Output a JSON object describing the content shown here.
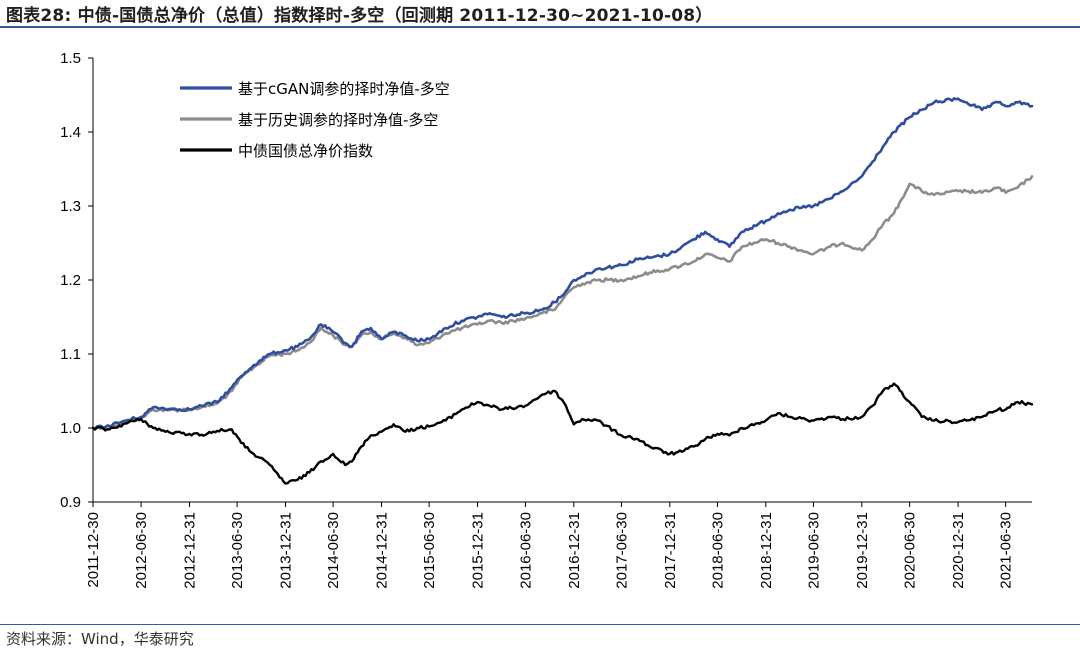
{
  "figure": {
    "title": "图表28:  中债-国债总净价（总值）指数择时-多空（回测期 2011-12-30~2021-10-08）",
    "source": "资料来源：Wind，华泰研究"
  },
  "chart_data": {
    "type": "line",
    "title": "",
    "xlabel": "",
    "ylabel": "",
    "ylim": [
      0.9,
      1.5
    ],
    "yticks": [
      "1.5",
      "1.4",
      "1.3",
      "1.2",
      "1.1",
      "1.0",
      "0.9"
    ],
    "ytick_values": [
      1.5,
      1.4,
      1.3,
      1.2,
      1.1,
      1.0,
      0.9
    ],
    "xticks": [
      "2011-12-30",
      "2012-06-30",
      "2012-12-31",
      "2013-06-30",
      "2013-12-31",
      "2014-06-30",
      "2014-12-31",
      "2015-06-30",
      "2015-12-31",
      "2016-06-30",
      "2016-12-31",
      "2017-06-30",
      "2017-12-31",
      "2018-06-30",
      "2018-12-31",
      "2019-06-30",
      "2019-12-31",
      "2020-06-30",
      "2020-12-31",
      "2021-06-30"
    ],
    "xrange": [
      "2011-12-30",
      "2021-10-08"
    ],
    "legend_position": "top-left",
    "grid": false,
    "series": [
      {
        "name": "基于cGAN调参的择时净值-多空",
        "color": "#2e4f9e",
        "points": [
          [
            "2011-12-30",
            1.0
          ],
          [
            "2012-03-01",
            1.003
          ],
          [
            "2012-05-01",
            1.01
          ],
          [
            "2012-06-30",
            1.015
          ],
          [
            "2012-08-15",
            1.028
          ],
          [
            "2012-10-15",
            1.026
          ],
          [
            "2012-12-31",
            1.025
          ],
          [
            "2013-02-15",
            1.03
          ],
          [
            "2013-04-15",
            1.035
          ],
          [
            "2013-06-10",
            1.055
          ],
          [
            "2013-07-15",
            1.07
          ],
          [
            "2013-09-01",
            1.085
          ],
          [
            "2013-11-01",
            1.1
          ],
          [
            "2013-12-31",
            1.105
          ],
          [
            "2014-02-15",
            1.11
          ],
          [
            "2014-04-01",
            1.12
          ],
          [
            "2014-05-15",
            1.14
          ],
          [
            "2014-06-30",
            1.13
          ],
          [
            "2014-08-15",
            1.115
          ],
          [
            "2014-09-10",
            1.11
          ],
          [
            "2014-10-15",
            1.13
          ],
          [
            "2014-11-20",
            1.135
          ],
          [
            "2014-12-31",
            1.12
          ],
          [
            "2015-02-15",
            1.13
          ],
          [
            "2015-04-01",
            1.125
          ],
          [
            "2015-05-15",
            1.118
          ],
          [
            "2015-06-30",
            1.12
          ],
          [
            "2015-09-01",
            1.135
          ],
          [
            "2015-11-01",
            1.145
          ],
          [
            "2015-12-31",
            1.15
          ],
          [
            "2016-02-15",
            1.155
          ],
          [
            "2016-04-01",
            1.15
          ],
          [
            "2016-06-30",
            1.155
          ],
          [
            "2016-09-01",
            1.16
          ],
          [
            "2016-10-20",
            1.17
          ],
          [
            "2016-12-01",
            1.185
          ],
          [
            "2016-12-31",
            1.2
          ],
          [
            "2017-02-01",
            1.205
          ],
          [
            "2017-04-01",
            1.215
          ],
          [
            "2017-06-30",
            1.22
          ],
          [
            "2017-09-01",
            1.228
          ],
          [
            "2017-10-15",
            1.23
          ],
          [
            "2017-12-31",
            1.235
          ],
          [
            "2018-02-15",
            1.245
          ],
          [
            "2018-04-01",
            1.255
          ],
          [
            "2018-05-15",
            1.265
          ],
          [
            "2018-06-30",
            1.255
          ],
          [
            "2018-08-15",
            1.245
          ],
          [
            "2018-10-01",
            1.265
          ],
          [
            "2018-12-31",
            1.28
          ],
          [
            "2019-02-15",
            1.29
          ],
          [
            "2019-04-01",
            1.295
          ],
          [
            "2019-06-30",
            1.3
          ],
          [
            "2019-09-01",
            1.31
          ],
          [
            "2019-10-20",
            1.32
          ],
          [
            "2019-12-31",
            1.34
          ],
          [
            "2020-02-10",
            1.36
          ],
          [
            "2020-03-20",
            1.38
          ],
          [
            "2020-05-01",
            1.4
          ],
          [
            "2020-06-30",
            1.42
          ],
          [
            "2020-08-15",
            1.43
          ],
          [
            "2020-10-01",
            1.44
          ],
          [
            "2020-12-31",
            1.445
          ],
          [
            "2021-02-01",
            1.44
          ],
          [
            "2021-04-01",
            1.43
          ],
          [
            "2021-06-01",
            1.44
          ],
          [
            "2021-06-30",
            1.435
          ],
          [
            "2021-08-15",
            1.44
          ],
          [
            "2021-10-08",
            1.435
          ]
        ]
      },
      {
        "name": "基于历史调参的择时净值-多空",
        "color": "#8c8c8c",
        "points": [
          [
            "2011-12-30",
            1.0
          ],
          [
            "2012-03-01",
            1.002
          ],
          [
            "2012-05-01",
            1.008
          ],
          [
            "2012-06-30",
            1.013
          ],
          [
            "2012-08-15",
            1.025
          ],
          [
            "2012-10-15",
            1.024
          ],
          [
            "2012-12-31",
            1.025
          ],
          [
            "2013-02-15",
            1.028
          ],
          [
            "2013-04-15",
            1.033
          ],
          [
            "2013-06-10",
            1.05
          ],
          [
            "2013-07-15",
            1.068
          ],
          [
            "2013-09-01",
            1.082
          ],
          [
            "2013-11-01",
            1.098
          ],
          [
            "2013-12-31",
            1.1
          ],
          [
            "2014-02-15",
            1.105
          ],
          [
            "2014-04-01",
            1.115
          ],
          [
            "2014-05-15",
            1.135
          ],
          [
            "2014-06-30",
            1.125
          ],
          [
            "2014-08-15",
            1.112
          ],
          [
            "2014-09-10",
            1.11
          ],
          [
            "2014-10-15",
            1.125
          ],
          [
            "2014-11-20",
            1.13
          ],
          [
            "2014-12-31",
            1.12
          ],
          [
            "2015-02-15",
            1.128
          ],
          [
            "2015-04-01",
            1.122
          ],
          [
            "2015-05-15",
            1.112
          ],
          [
            "2015-06-30",
            1.115
          ],
          [
            "2015-09-01",
            1.128
          ],
          [
            "2015-11-01",
            1.135
          ],
          [
            "2015-12-31",
            1.14
          ],
          [
            "2016-02-15",
            1.145
          ],
          [
            "2016-04-01",
            1.142
          ],
          [
            "2016-06-30",
            1.148
          ],
          [
            "2016-09-01",
            1.155
          ],
          [
            "2016-10-20",
            1.16
          ],
          [
            "2016-12-01",
            1.18
          ],
          [
            "2016-12-31",
            1.19
          ],
          [
            "2017-02-01",
            1.195
          ],
          [
            "2017-04-01",
            1.2
          ],
          [
            "2017-06-30",
            1.2
          ],
          [
            "2017-09-01",
            1.205
          ],
          [
            "2017-10-15",
            1.21
          ],
          [
            "2017-12-31",
            1.215
          ],
          [
            "2018-02-15",
            1.22
          ],
          [
            "2018-04-01",
            1.225
          ],
          [
            "2018-05-15",
            1.235
          ],
          [
            "2018-06-30",
            1.23
          ],
          [
            "2018-08-15",
            1.225
          ],
          [
            "2018-10-01",
            1.245
          ],
          [
            "2018-12-31",
            1.255
          ],
          [
            "2019-02-15",
            1.25
          ],
          [
            "2019-04-01",
            1.245
          ],
          [
            "2019-06-30",
            1.235
          ],
          [
            "2019-09-01",
            1.245
          ],
          [
            "2019-10-20",
            1.25
          ],
          [
            "2019-12-31",
            1.24
          ],
          [
            "2020-02-10",
            1.255
          ],
          [
            "2020-03-20",
            1.275
          ],
          [
            "2020-05-01",
            1.29
          ],
          [
            "2020-06-30",
            1.33
          ],
          [
            "2020-08-15",
            1.32
          ],
          [
            "2020-10-01",
            1.315
          ],
          [
            "2020-12-31",
            1.32
          ],
          [
            "2021-02-01",
            1.32
          ],
          [
            "2021-04-01",
            1.318
          ],
          [
            "2021-06-01",
            1.325
          ],
          [
            "2021-06-30",
            1.318
          ],
          [
            "2021-08-15",
            1.325
          ],
          [
            "2021-10-08",
            1.34
          ]
        ]
      },
      {
        "name": "中债国债总净价指数",
        "color": "#000000",
        "points": [
          [
            "2011-12-30",
            1.0
          ],
          [
            "2012-03-01",
            0.998
          ],
          [
            "2012-05-01",
            1.006
          ],
          [
            "2012-06-30",
            1.012
          ],
          [
            "2012-08-15",
            1.0
          ],
          [
            "2012-10-15",
            0.994
          ],
          [
            "2012-12-31",
            0.992
          ],
          [
            "2013-02-15",
            0.991
          ],
          [
            "2013-04-15",
            0.996
          ],
          [
            "2013-06-10",
            0.998
          ],
          [
            "2013-07-15",
            0.98
          ],
          [
            "2013-09-01",
            0.965
          ],
          [
            "2013-11-01",
            0.95
          ],
          [
            "2013-12-31",
            0.925
          ],
          [
            "2014-02-15",
            0.93
          ],
          [
            "2014-04-01",
            0.94
          ],
          [
            "2014-05-15",
            0.955
          ],
          [
            "2014-06-30",
            0.965
          ],
          [
            "2014-08-15",
            0.95
          ],
          [
            "2014-09-10",
            0.955
          ],
          [
            "2014-10-15",
            0.975
          ],
          [
            "2014-11-20",
            0.99
          ],
          [
            "2014-12-31",
            0.995
          ],
          [
            "2015-02-15",
            1.005
          ],
          [
            "2015-04-01",
            0.995
          ],
          [
            "2015-05-15",
            1.0
          ],
          [
            "2015-06-30",
            1.002
          ],
          [
            "2015-09-01",
            1.01
          ],
          [
            "2015-11-01",
            1.025
          ],
          [
            "2015-12-31",
            1.035
          ],
          [
            "2016-02-15",
            1.03
          ],
          [
            "2016-04-01",
            1.025
          ],
          [
            "2016-06-30",
            1.03
          ],
          [
            "2016-09-01",
            1.045
          ],
          [
            "2016-10-20",
            1.05
          ],
          [
            "2016-12-01",
            1.03
          ],
          [
            "2016-12-31",
            1.005
          ],
          [
            "2017-02-01",
            1.012
          ],
          [
            "2017-04-01",
            1.01
          ],
          [
            "2017-06-30",
            0.99
          ],
          [
            "2017-09-01",
            0.985
          ],
          [
            "2017-10-15",
            0.975
          ],
          [
            "2017-12-31",
            0.965
          ],
          [
            "2018-02-15",
            0.968
          ],
          [
            "2018-04-01",
            0.975
          ],
          [
            "2018-05-15",
            0.985
          ],
          [
            "2018-06-30",
            0.992
          ],
          [
            "2018-08-15",
            0.99
          ],
          [
            "2018-10-01",
            1.0
          ],
          [
            "2018-12-31",
            1.01
          ],
          [
            "2019-02-15",
            1.02
          ],
          [
            "2019-04-01",
            1.015
          ],
          [
            "2019-06-30",
            1.01
          ],
          [
            "2019-09-01",
            1.015
          ],
          [
            "2019-10-20",
            1.012
          ],
          [
            "2019-12-31",
            1.015
          ],
          [
            "2020-02-10",
            1.03
          ],
          [
            "2020-03-20",
            1.05
          ],
          [
            "2020-05-01",
            1.06
          ],
          [
            "2020-06-30",
            1.035
          ],
          [
            "2020-08-15",
            1.015
          ],
          [
            "2020-10-01",
            1.01
          ],
          [
            "2020-12-31",
            1.008
          ],
          [
            "2021-02-01",
            1.01
          ],
          [
            "2021-04-01",
            1.015
          ],
          [
            "2021-06-01",
            1.025
          ],
          [
            "2021-06-30",
            1.025
          ],
          [
            "2021-08-15",
            1.035
          ],
          [
            "2021-10-08",
            1.032
          ]
        ]
      }
    ]
  }
}
